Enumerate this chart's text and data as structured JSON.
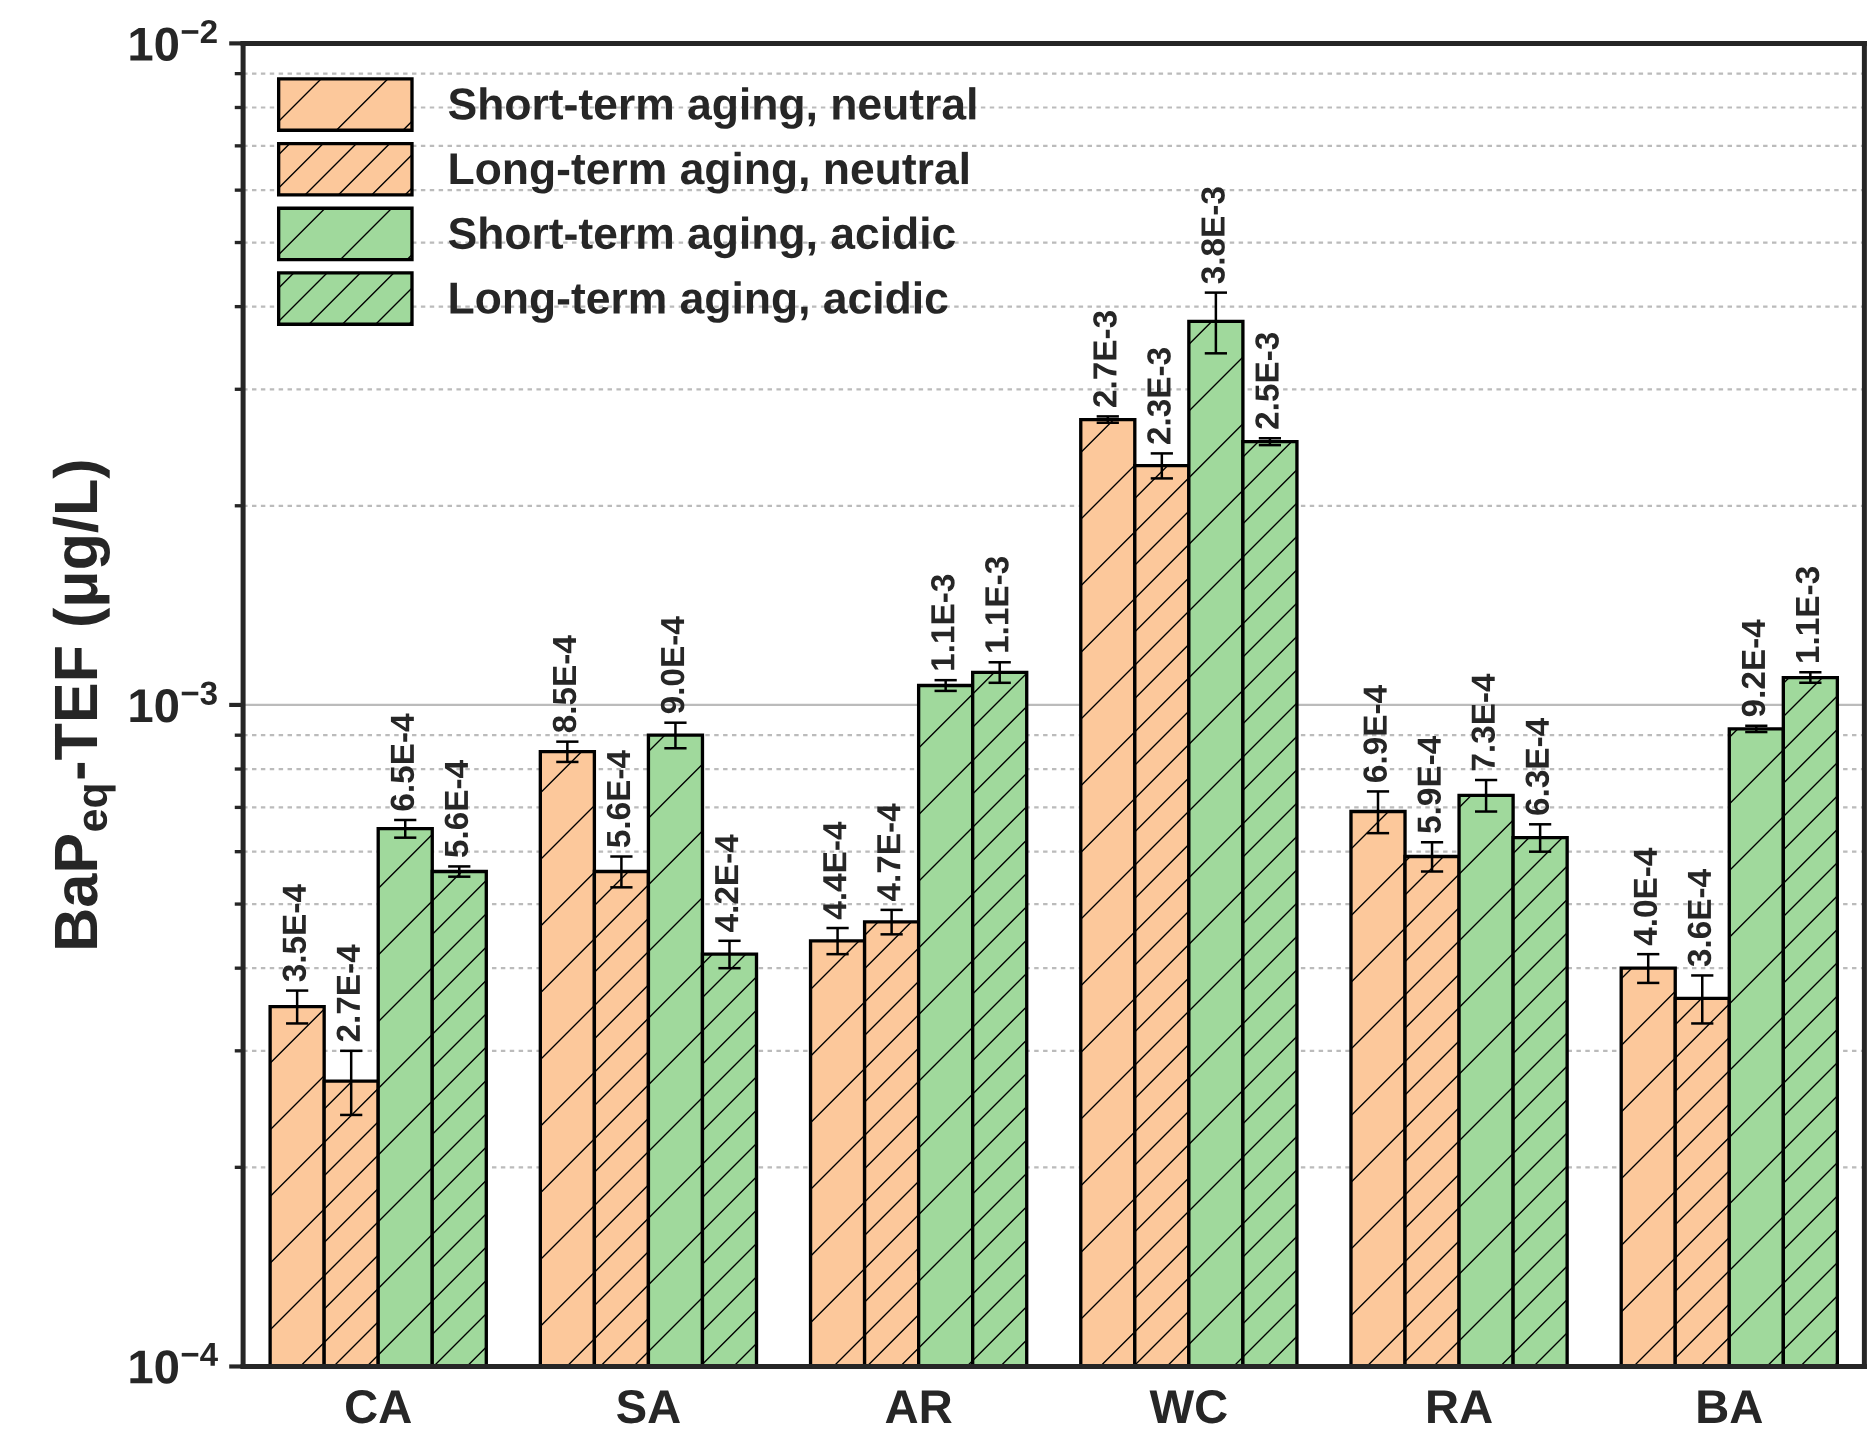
{
  "chart_data": {
    "type": "bar",
    "ylabel": "BaP$_{eq}$-TEF (μg/L)",
    "categories": [
      "CA",
      "SA",
      "AR",
      "WC",
      "RA",
      "BA"
    ],
    "series": [
      {
        "name": "Short-term aging, neutral",
        "color": "#fcc89b",
        "values": [
          0.00035,
          0.00085,
          0.00044,
          0.0027,
          0.00069,
          0.0004
        ],
        "errors": [
          2e-05,
          3e-05,
          2e-05,
          3e-05,
          5e-05,
          2e-05
        ],
        "value_labels": [
          "3.5E-4",
          "8.5E-4",
          "4.4E-4",
          "2.7E-3",
          "6.9E-4",
          "4.0E-4"
        ]
      },
      {
        "name": "Long-term aging, neutral",
        "color": "#fcc89b",
        "values": [
          0.00027,
          0.00056,
          0.00047,
          0.0023,
          0.00059,
          0.00036
        ],
        "errors": [
          3e-05,
          3e-05,
          2e-05,
          0.0001,
          3e-05,
          3e-05
        ],
        "value_labels": [
          "2.7E-4",
          "5.6E-4",
          "4.7E-4",
          "2.3E-3",
          "5.9E-4",
          "3.6E-4"
        ]
      },
      {
        "name": "Short-term aging, acidic",
        "color": "#a0d99c",
        "values": [
          0.00065,
          0.0009,
          0.00107,
          0.0038,
          0.00073,
          0.00092
        ],
        "errors": [
          2e-05,
          4e-05,
          2e-05,
          0.0004,
          4e-05,
          1e-05
        ],
        "value_labels": [
          "6.5E-4",
          "9.0E-4",
          "1.1E-3",
          "3.8E-3",
          "7.3E-4",
          "9.2E-4"
        ]
      },
      {
        "name": "Long-term aging, acidic",
        "color": "#a0d99c",
        "values": [
          0.00056,
          0.00042,
          0.00112,
          0.0025,
          0.00063,
          0.0011
        ],
        "errors": [
          1e-05,
          2e-05,
          4e-05,
          3e-05,
          3e-05,
          2e-05
        ],
        "value_labels": [
          "5.6E-4",
          "4.2E-4",
          "1.1E-3",
          "2.5E-3",
          "6.3E-4",
          "1.1E-3"
        ]
      }
    ],
    "log": true,
    "ylim": [
      0.0001,
      0.01
    ],
    "yticks": [
      {
        "value": 0.0001,
        "label": "10$^{−4}$"
      },
      {
        "value": 0.001,
        "label": "10$^{−3}$"
      },
      {
        "value": 0.01,
        "label": "10$^{−2}$"
      }
    ],
    "grid": "y",
    "legend": "top left"
  }
}
